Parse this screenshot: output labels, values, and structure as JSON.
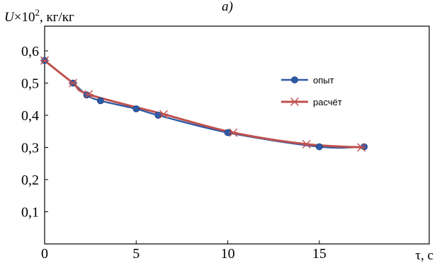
{
  "panel_label": "а)",
  "chart_data": {
    "type": "line",
    "ylabel": {
      "symbol": "U",
      "mult": "×10",
      "exp": "2",
      "unit": ", кг/кг"
    },
    "xlabel": "τ, с",
    "xlim": [
      0,
      21
    ],
    "ylim": [
      0,
      0.6
    ],
    "x_ticks": [
      0,
      5,
      10,
      15
    ],
    "x_tick_labels": [
      "0",
      "5",
      "10",
      "15"
    ],
    "y_ticks": [
      0.1,
      0.2,
      0.3,
      0.4,
      0.5,
      0.6
    ],
    "y_tick_labels": [
      "0,1",
      "0,2",
      "0,3",
      "0,4",
      "0,5",
      "0,6"
    ],
    "grid": false,
    "legend_position": "right",
    "series": [
      {
        "name": "опыт",
        "color": "#2e5aa8",
        "marker": "circle",
        "x": [
          0,
          1.55,
          2.3,
          3.05,
          5.0,
          6.2,
          10.0,
          15.0,
          17.45
        ],
        "y": [
          0.57,
          0.5,
          0.463,
          0.445,
          0.42,
          0.4,
          0.346,
          0.302,
          0.302
        ]
      },
      {
        "name": "расчёт",
        "color": "#c0504d",
        "marker": "asterisk",
        "x": [
          0,
          1.55,
          2.4,
          6.5,
          10.3,
          14.3,
          17.3
        ],
        "y": [
          0.57,
          0.5,
          0.465,
          0.403,
          0.346,
          0.31,
          0.3
        ]
      }
    ]
  }
}
